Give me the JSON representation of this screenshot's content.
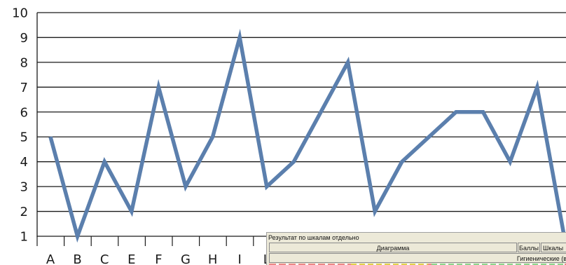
{
  "chart_data": {
    "type": "line",
    "title": "",
    "xlabel": "",
    "ylabel": "",
    "ylim": [
      1,
      10
    ],
    "yticks": [
      1,
      2,
      3,
      4,
      5,
      6,
      7,
      8,
      9,
      10
    ],
    "grid": true,
    "categories": [
      "A",
      "B",
      "C",
      "E",
      "F",
      "G",
      "H",
      "I",
      "L",
      "",
      "",
      "",
      "",
      "",
      "",
      "",
      "",
      "",
      "",
      ""
    ],
    "series": [
      {
        "values": [
          5,
          1,
          4,
          2,
          7,
          3,
          5,
          9,
          3,
          4,
          6,
          8,
          2,
          4,
          5,
          6,
          6,
          4,
          7,
          1
        ],
        "color": "#5b7fad"
      }
    ]
  },
  "panel": {
    "title": "Результат по шкалам отдельно",
    "col_diagram": "Диаграмма",
    "col_points": "Баллы",
    "col_scales": "Шкалы",
    "row_hygienic": "Гигиенические (в"
  }
}
